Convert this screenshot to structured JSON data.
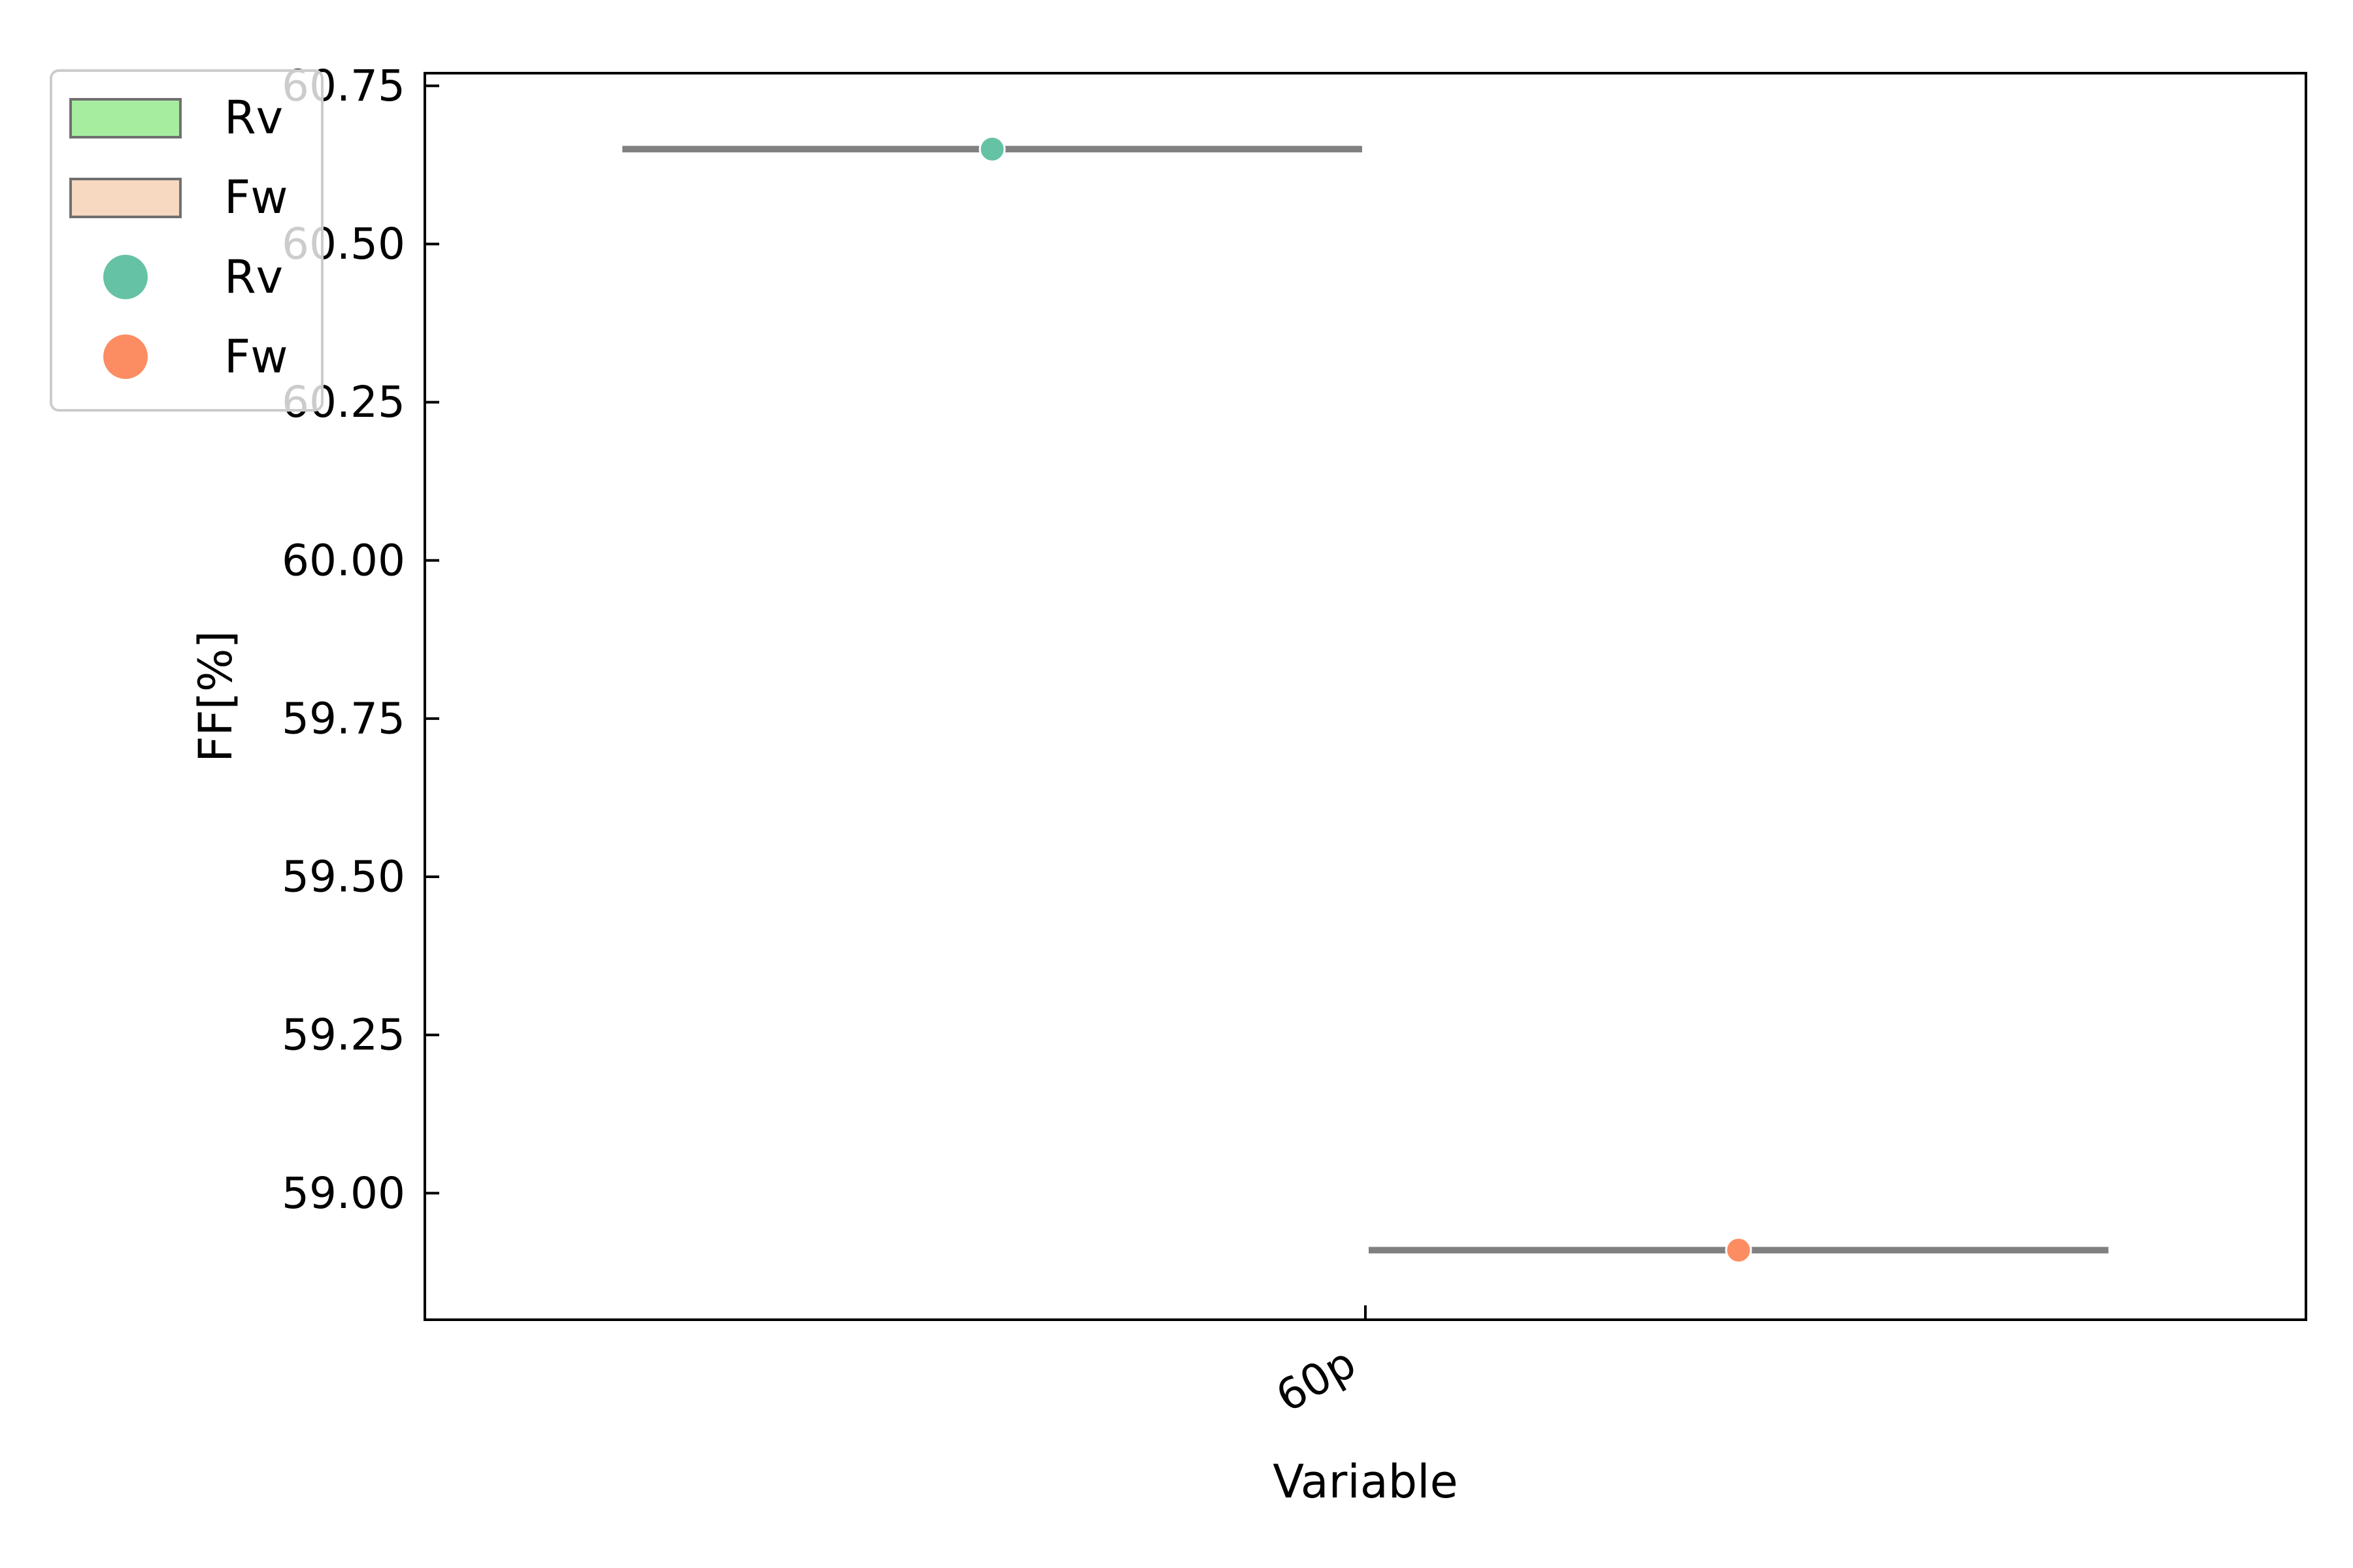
{
  "chart_data": {
    "type": "box",
    "xlabel": "Variable",
    "ylabel": "FF[%]",
    "categories": [
      "60p"
    ],
    "ylim": [
      58.8,
      60.77
    ],
    "yticks": [
      59.0,
      59.25,
      59.5,
      59.75,
      60.0,
      60.25,
      60.5,
      60.75
    ],
    "ytick_labels": [
      "59.00",
      "59.25",
      "59.50",
      "59.75",
      "60.00",
      "60.25",
      "60.50",
      "60.75"
    ],
    "grid": false,
    "legend_placement": "upper-left (outside axes)",
    "series": [
      {
        "name": "Rv",
        "category": "60p",
        "side": "left",
        "median": 60.65,
        "points": [
          60.65
        ],
        "box_color": "#a6eda0",
        "point_color": "#66c2a5"
      },
      {
        "name": "Fw",
        "category": "60p",
        "side": "right",
        "median": 58.91,
        "points": [
          58.91
        ],
        "box_color": "#f7d9c1",
        "point_color": "#fc8d62"
      }
    ],
    "legend": [
      {
        "label": "Rv",
        "kind": "patch",
        "color": "#a6eda0"
      },
      {
        "label": "Fw",
        "kind": "patch",
        "color": "#f7d9c1"
      },
      {
        "label": "Rv",
        "kind": "marker",
        "color": "#66c2a5"
      },
      {
        "label": "Fw",
        "kind": "marker",
        "color": "#fc8d62"
      }
    ],
    "line_color": "#808080"
  }
}
